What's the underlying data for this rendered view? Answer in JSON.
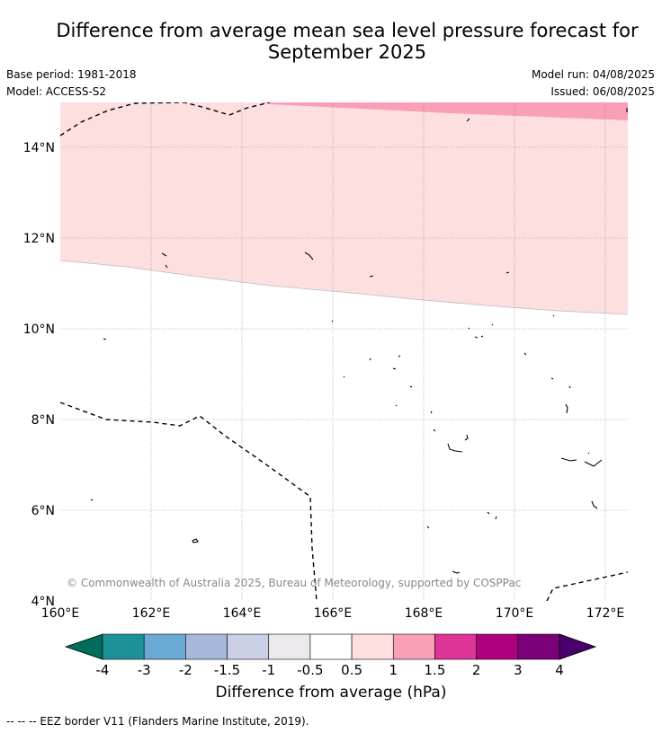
{
  "header": {
    "title_line1": "Difference from average mean sea level pressure forecast for",
    "title_line2": "September 2025",
    "base_period": "Base period: 1981-2018",
    "model": "Model: ACCESS-S2",
    "model_run": "Model run: 04/08/2025",
    "issued": "Issued: 06/08/2025"
  },
  "map": {
    "lon_ticks": [
      "160°E",
      "162°E",
      "164°E",
      "166°E",
      "168°E",
      "170°E",
      "172°E"
    ],
    "lat_ticks": [
      "14°N",
      "12°N",
      "10°N",
      "8°N",
      "6°N",
      "4°N"
    ],
    "copyright": "© Commonwealth of Australia 2025, Bureau of Meteorology, supported by COSPPac",
    "layers": [
      {
        "range": "1 to 1.5 hPa",
        "color": "#f99fb8",
        "area": "northern strip near 15°N"
      },
      {
        "range": "0.5 to 1 hPa",
        "color": "#fddfe0",
        "area": "north of about 11.5°N to 10.3°N"
      },
      {
        "range": "-0.5 to 0.5 hPa",
        "color": "#ffffff",
        "area": "south of the 0.5 hPa contour"
      }
    ]
  },
  "colorbar": {
    "ticks": [
      "-4",
      "-3",
      "-2",
      "-1.5",
      "-1",
      "-0.5",
      "0.5",
      "1",
      "1.5",
      "2",
      "3",
      "4"
    ],
    "colors": [
      "#006d5b",
      "#1c9298",
      "#6aaad4",
      "#a7b9db",
      "#ccd0e6",
      "#ebe9ee",
      "#ffffff",
      "#fddfe0",
      "#f99fb8",
      "#dd3497",
      "#ae017e",
      "#7a0177",
      "#49006a"
    ],
    "label": "Difference from average (hPa)"
  },
  "footer": {
    "legend": "--  --  -- EEZ border V11 (Flanders Marine Institute, 2019)."
  }
}
